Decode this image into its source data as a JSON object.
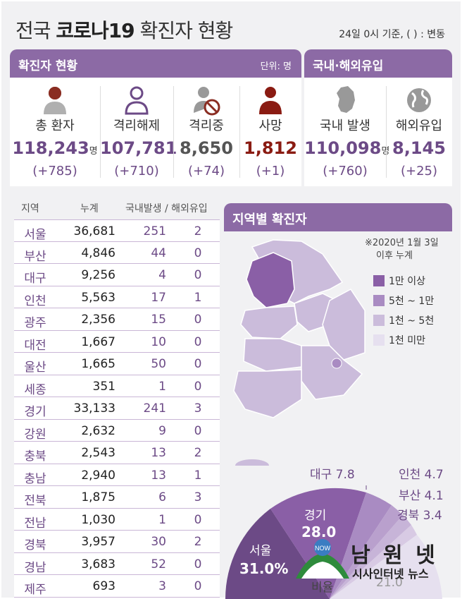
{
  "header": {
    "title_pre": "전국 ",
    "title_bold": "코로나19",
    "title_post": " 확진자 현황",
    "note": "24일 0시 기준, ( ) : 변동"
  },
  "status_bar": {
    "title": "확진자 현황",
    "unit": "단위: 명"
  },
  "origin_bar": {
    "title": "국내·해외유입"
  },
  "stats": [
    {
      "label": "총 환자",
      "value": "118,243",
      "suffix": "명",
      "change": "(+785)"
    },
    {
      "label": "격리해제",
      "value": "107,781",
      "suffix": "",
      "change": "(+710)"
    },
    {
      "label": "격리중",
      "value": "8,650",
      "suffix": "",
      "change": "(+74)"
    },
    {
      "label": "사망",
      "value": "1,812",
      "suffix": "",
      "change": "(+1)"
    }
  ],
  "origin": [
    {
      "label": "국내 발생",
      "value": "110,098",
      "suffix": "명",
      "change": "(+760)"
    },
    {
      "label": "해외유입",
      "value": "8,145",
      "suffix": "",
      "change": "(+25)"
    }
  ],
  "icons": [
    "person-icon",
    "person-outline-icon",
    "person-blocked-icon",
    "person-death-icon",
    "korea-map-icon",
    "globe-icon"
  ],
  "table": {
    "headers": {
      "region": "지역",
      "total": "누계",
      "split": "국내발생 / 해외유입"
    },
    "rows": [
      [
        "서울",
        "36,681",
        "251",
        "2"
      ],
      [
        "부산",
        "4,846",
        "44",
        "0"
      ],
      [
        "대구",
        "9,256",
        "4",
        "0"
      ],
      [
        "인천",
        "5,563",
        "17",
        "1"
      ],
      [
        "광주",
        "2,356",
        "15",
        "0"
      ],
      [
        "대전",
        "1,667",
        "10",
        "0"
      ],
      [
        "울산",
        "1,665",
        "50",
        "0"
      ],
      [
        "세종",
        "351",
        "1",
        "0"
      ],
      [
        "경기",
        "33,133",
        "241",
        "3"
      ],
      [
        "강원",
        "2,632",
        "9",
        "0"
      ],
      [
        "충북",
        "2,543",
        "13",
        "2"
      ],
      [
        "충남",
        "2,940",
        "13",
        "1"
      ],
      [
        "전북",
        "1,875",
        "6",
        "3"
      ],
      [
        "전남",
        "1,030",
        "1",
        "0"
      ],
      [
        "경북",
        "3,957",
        "30",
        "2"
      ],
      [
        "경남",
        "3,683",
        "52",
        "0"
      ],
      [
        "제주",
        "693",
        "3",
        "0"
      ]
    ]
  },
  "map": {
    "title": "지역별 확진자",
    "note1": "※2020년 1월 3일",
    "note2": "이후 누계",
    "legend": [
      {
        "label": "1만 이상",
        "color": "#8a5fa6"
      },
      {
        "label": "5천 ~ 1만",
        "color": "#a98bc2"
      },
      {
        "label": "1천 ~ 5천",
        "color": "#cbbcdb"
      },
      {
        "label": "1천 미만",
        "color": "#e6e0ef"
      }
    ]
  },
  "ratio": {
    "seoul_label": "서울",
    "seoul_value": "31.0%",
    "gyeonggi_label": "경기",
    "gyeonggi_value": "28.0",
    "daegu": "대구 7.8",
    "incheon": "인천 4.7",
    "busan": "부산 4.1",
    "gyeongbuk": "경북 3.4",
    "other_label": "비율",
    "other_value": "21.0"
  },
  "logo": {
    "name": "남 원 넷",
    "tagline": "시사인터넷 뉴스",
    "badge": "NOW"
  }
}
